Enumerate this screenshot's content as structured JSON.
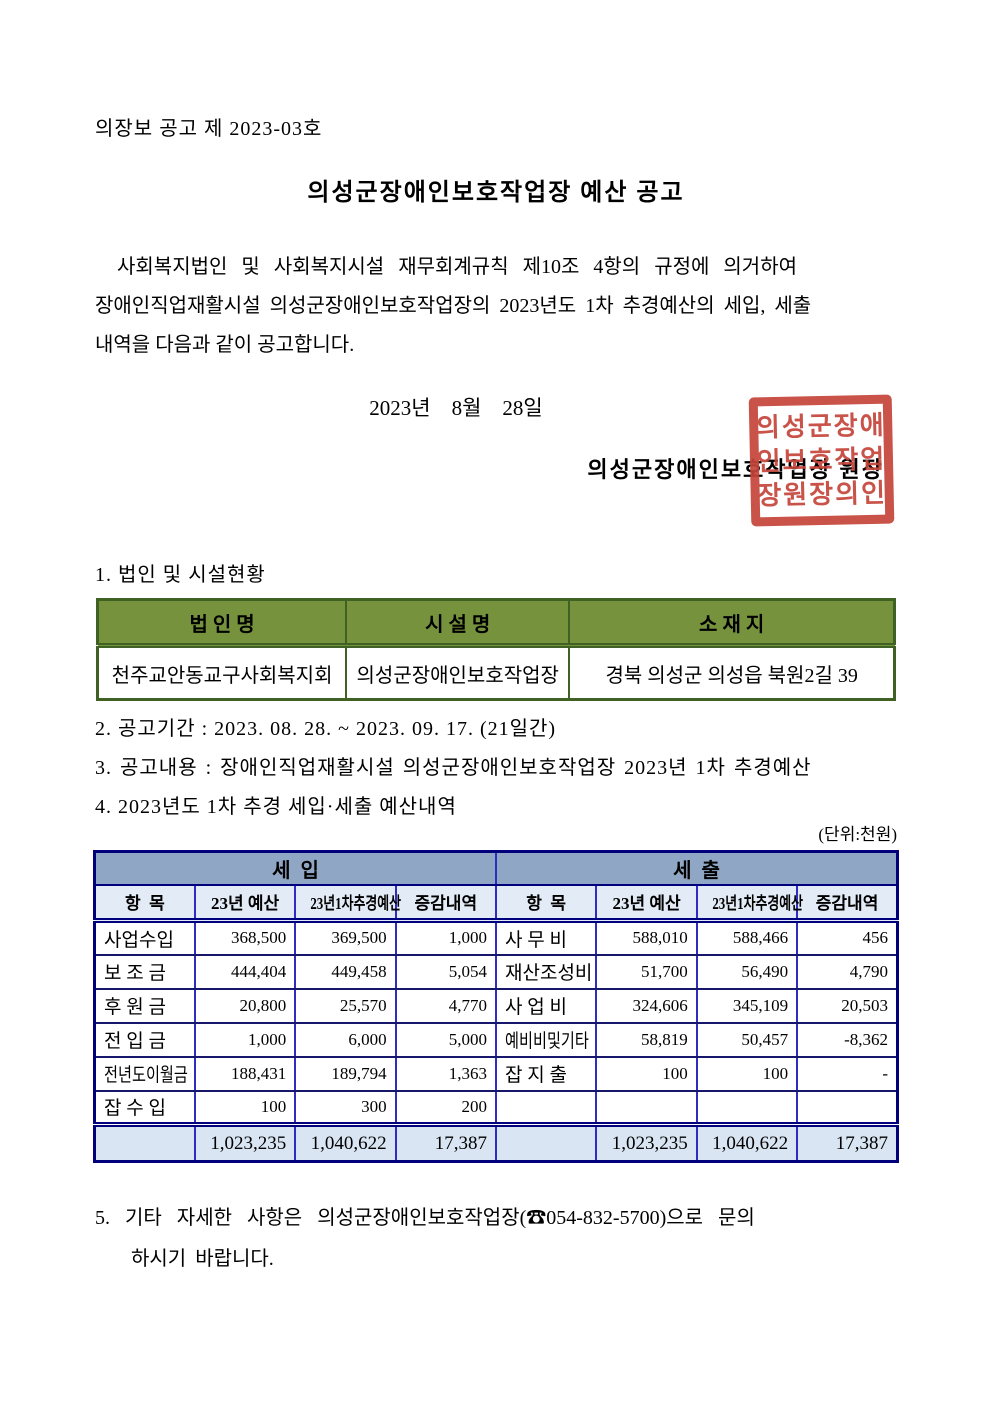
{
  "doc": {
    "doc_number": "의장보 공고 제 2023-03호",
    "title": "의성군장애인보호작업장 예산 공고",
    "body_line1": "사회복지법인 및 사회복지시설 재무회계규칙 제10조 4항의 규정에 의거하여",
    "body_line2": "장애인직업재활시설 의성군장애인보호작업장의 2023년도 1차 추경예산의 세입, 세출",
    "body_line3": "내역을 다음과 같이 공고합니다.",
    "date": "2023년    8월    28일",
    "signer": "의성군장애인보호작업장 원장",
    "stamp": {
      "line1": "의성군장애",
      "line2": "인보호작업",
      "line3": "장원장의인"
    }
  },
  "section1": {
    "heading": "1. 법인 및 시설현황",
    "headers": {
      "corp": "법 인 명",
      "facility": "시 설 명",
      "location": "소 재 지"
    },
    "row": {
      "corp": "천주교안동교구사회복지회",
      "facility": "의성군장애인보호작업장",
      "location": "경북 의성군 의성읍 북원2길 39"
    }
  },
  "section2": "2. 공고기간 : 2023. 08. 28. ~ 2023. 09. 17. (21일간)",
  "section3": "3. 공고내용 : 장애인직업재활시설 의성군장애인보호작업장 2023년 1차 추경예산",
  "section4": "4. 2023년도 1차 추경 세입·세출 예산내역",
  "unit_note": "(단위:천원)",
  "budget_table": {
    "group_headers": {
      "revenue": "세  입",
      "expenditure": "세  출"
    },
    "sub_headers": [
      "항  목",
      "23년 예산",
      "23년1차추경예산",
      "증감내역",
      "항  목",
      "23년 예산",
      "23년1차추경예산",
      "증감내역"
    ],
    "rows": [
      [
        "사업수입",
        "368,500",
        "369,500",
        "1,000",
        "사 무 비",
        "588,010",
        "588,466",
        "456"
      ],
      [
        "보 조 금",
        "444,404",
        "449,458",
        "5,054",
        "재산조성비",
        "51,700",
        "56,490",
        "4,790"
      ],
      [
        "후 원 금",
        "20,800",
        "25,570",
        "4,770",
        "사 업 비",
        "324,606",
        "345,109",
        "20,503"
      ],
      [
        "전 입 금",
        "1,000",
        "6,000",
        "5,000",
        "예비비및기타",
        "58,819",
        "50,457",
        "-8,362"
      ],
      [
        "전년도이월금",
        "188,431",
        "189,794",
        "1,363",
        "잡 지 출",
        "100",
        "100",
        "-"
      ],
      [
        "잡 수 입",
        "100",
        "300",
        "200",
        "",
        "",
        "",
        ""
      ]
    ],
    "total_row": [
      "",
      "1,023,235",
      "1,040,622",
      "17,387",
      "",
      "1,023,235",
      "1,040,622",
      "17,387"
    ]
  },
  "section5": {
    "line1": "5. 기타 자세한 사항은 의성군장애인보호작업장(☎054-832-5700)으로 문의",
    "line2": "하시기 바랍니다."
  },
  "colors": {
    "green_header_bg": "#76923c",
    "green_border": "#3f6123",
    "blue_group_bg": "#8fa7c4",
    "blue_sub_bg": "#e3ebf6",
    "blue_total_bg": "#d9e5f2",
    "navy_border": "#00007d",
    "inner_blue_border": "#2d2dc1",
    "stamp_red": "#c5443a"
  }
}
